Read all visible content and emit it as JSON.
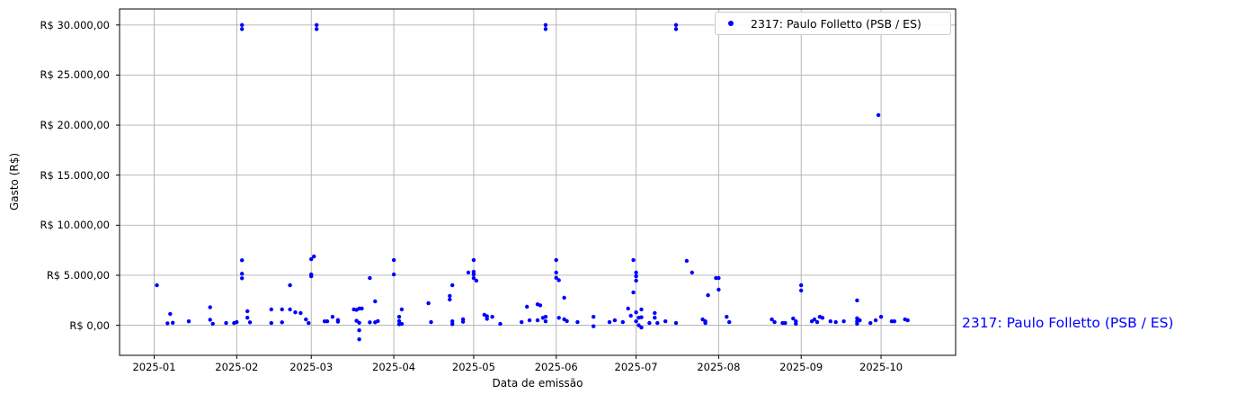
{
  "figure": {
    "background": "#ffffff"
  },
  "colors": {
    "series": "#0000ff",
    "grid": "#b0b0b0",
    "spine": "#000000",
    "legend_border": "#cccccc",
    "annotation": "#0000ff"
  },
  "annotation": {
    "text": "2317: Paulo Folletto (PSB / ES)"
  },
  "chart_data": {
    "type": "scatter",
    "title": "",
    "xlabel": "Data de emissão",
    "ylabel": "Gasto (R$)",
    "grid": true,
    "legend_position": "upper right",
    "xlim": [
      "2024-12-19",
      "2025-10-29"
    ],
    "ylim": [
      -3000,
      31600
    ],
    "x_ticks": [
      "2025-01",
      "2025-02",
      "2025-03",
      "2025-04",
      "2025-05",
      "2025-06",
      "2025-07",
      "2025-08",
      "2025-09",
      "2025-10"
    ],
    "y_ticks": [
      {
        "value": 0,
        "label": "R$ 0,00"
      },
      {
        "value": 5000,
        "label": "R$ 5.000,00"
      },
      {
        "value": 10000,
        "label": "R$ 10.000,00"
      },
      {
        "value": 15000,
        "label": "R$ 15.000,00"
      },
      {
        "value": 20000,
        "label": "R$ 20.000,00"
      },
      {
        "value": 25000,
        "label": "R$ 25.000,00"
      },
      {
        "value": 30000,
        "label": "R$ 30.000,00"
      }
    ],
    "series": [
      {
        "name": "2317: Paulo Folletto (PSB / ES)",
        "color": "#0000ff",
        "marker": "dot",
        "points": [
          [
            "2025-01-02",
            4000
          ],
          [
            "2025-01-06",
            200
          ],
          [
            "2025-01-07",
            1130
          ],
          [
            "2025-01-08",
            250
          ],
          [
            "2025-01-14",
            400
          ],
          [
            "2025-01-22",
            1800
          ],
          [
            "2025-01-22",
            550
          ],
          [
            "2025-01-23",
            150
          ],
          [
            "2025-01-28",
            230
          ],
          [
            "2025-01-31",
            230
          ],
          [
            "2025-02-01",
            320
          ],
          [
            "2025-02-03",
            30000
          ],
          [
            "2025-02-03",
            29600
          ],
          [
            "2025-02-03",
            6500
          ],
          [
            "2025-02-03",
            5150
          ],
          [
            "2025-02-03",
            4700
          ],
          [
            "2025-02-05",
            1400
          ],
          [
            "2025-02-05",
            760
          ],
          [
            "2025-02-06",
            300
          ],
          [
            "2025-02-14",
            1580
          ],
          [
            "2025-02-14",
            225
          ],
          [
            "2025-02-18",
            1580
          ],
          [
            "2025-02-18",
            300
          ],
          [
            "2025-02-21",
            1580
          ],
          [
            "2025-02-21",
            4000
          ],
          [
            "2025-02-23",
            1300
          ],
          [
            "2025-02-25",
            1220
          ],
          [
            "2025-02-27",
            585
          ],
          [
            "2025-02-28",
            225
          ],
          [
            "2025-03-01",
            6610
          ],
          [
            "2025-03-01",
            5080
          ],
          [
            "2025-03-01",
            4900
          ],
          [
            "2025-03-02",
            6880
          ],
          [
            "2025-03-03",
            30000
          ],
          [
            "2025-03-03",
            29600
          ],
          [
            "2025-03-06",
            400
          ],
          [
            "2025-03-07",
            400
          ],
          [
            "2025-03-09",
            850
          ],
          [
            "2025-03-11",
            520
          ],
          [
            "2025-03-11",
            360
          ],
          [
            "2025-03-17",
            1580
          ],
          [
            "2025-03-18",
            1540
          ],
          [
            "2025-03-18",
            450
          ],
          [
            "2025-03-19",
            1670
          ],
          [
            "2025-03-19",
            250
          ],
          [
            "2025-03-19",
            -500
          ],
          [
            "2025-03-19",
            -1400
          ],
          [
            "2025-03-20",
            1670
          ],
          [
            "2025-03-23",
            4720
          ],
          [
            "2025-03-23",
            300
          ],
          [
            "2025-03-25",
            2390
          ],
          [
            "2025-03-25",
            300
          ],
          [
            "2025-03-26",
            420
          ],
          [
            "2025-04-01",
            6520
          ],
          [
            "2025-04-01",
            5080
          ],
          [
            "2025-04-03",
            850
          ],
          [
            "2025-04-03",
            420
          ],
          [
            "2025-04-03",
            100
          ],
          [
            "2025-04-04",
            1580
          ],
          [
            "2025-04-04",
            140
          ],
          [
            "2025-04-14",
            2200
          ],
          [
            "2025-04-15",
            320
          ],
          [
            "2025-04-22",
            2930
          ],
          [
            "2025-04-22",
            2570
          ],
          [
            "2025-04-23",
            4000
          ],
          [
            "2025-04-23",
            400
          ],
          [
            "2025-04-23",
            120
          ],
          [
            "2025-04-27",
            600
          ],
          [
            "2025-04-27",
            350
          ],
          [
            "2025-04-29",
            5270
          ],
          [
            "2025-05-01",
            6520
          ],
          [
            "2025-05-01",
            5350
          ],
          [
            "2025-05-01",
            5080
          ],
          [
            "2025-05-01",
            4720
          ],
          [
            "2025-05-02",
            4460
          ],
          [
            "2025-05-05",
            1050
          ],
          [
            "2025-05-06",
            900
          ],
          [
            "2025-05-06",
            650
          ],
          [
            "2025-05-08",
            850
          ],
          [
            "2025-05-11",
            140
          ],
          [
            "2025-05-19",
            320
          ],
          [
            "2025-05-21",
            1850
          ],
          [
            "2025-05-22",
            500
          ],
          [
            "2025-05-25",
            2100
          ],
          [
            "2025-05-25",
            500
          ],
          [
            "2025-05-26",
            2000
          ],
          [
            "2025-05-27",
            750
          ],
          [
            "2025-05-28",
            30000
          ],
          [
            "2025-05-28",
            29600
          ],
          [
            "2025-05-28",
            850
          ],
          [
            "2025-05-28",
            400
          ],
          [
            "2025-06-01",
            6520
          ],
          [
            "2025-06-01",
            5270
          ],
          [
            "2025-06-01",
            4750
          ],
          [
            "2025-06-02",
            4500
          ],
          [
            "2025-06-02",
            750
          ],
          [
            "2025-06-04",
            2750
          ],
          [
            "2025-06-04",
            600
          ],
          [
            "2025-06-05",
            420
          ],
          [
            "2025-06-09",
            320
          ],
          [
            "2025-06-15",
            850
          ],
          [
            "2025-06-15",
            -100
          ],
          [
            "2025-06-21",
            320
          ],
          [
            "2025-06-23",
            500
          ],
          [
            "2025-06-26",
            320
          ],
          [
            "2025-06-28",
            1670
          ],
          [
            "2025-06-29",
            950
          ],
          [
            "2025-06-30",
            6520
          ],
          [
            "2025-06-30",
            3280
          ],
          [
            "2025-07-01",
            5270
          ],
          [
            "2025-07-01",
            4900
          ],
          [
            "2025-07-01",
            4460
          ],
          [
            "2025-07-01",
            1300
          ],
          [
            "2025-07-01",
            400
          ],
          [
            "2025-07-02",
            760
          ],
          [
            "2025-07-02",
            0
          ],
          [
            "2025-07-03",
            1580
          ],
          [
            "2025-07-03",
            800
          ],
          [
            "2025-07-03",
            -220
          ],
          [
            "2025-07-06",
            230
          ],
          [
            "2025-07-08",
            1220
          ],
          [
            "2025-07-08",
            760
          ],
          [
            "2025-07-09",
            230
          ],
          [
            "2025-07-12",
            400
          ],
          [
            "2025-07-16",
            30000
          ],
          [
            "2025-07-16",
            29600
          ],
          [
            "2025-07-16",
            230
          ],
          [
            "2025-07-20",
            6440
          ],
          [
            "2025-07-22",
            5270
          ],
          [
            "2025-07-26",
            590
          ],
          [
            "2025-07-27",
            400
          ],
          [
            "2025-07-27",
            230
          ],
          [
            "2025-07-28",
            3000
          ],
          [
            "2025-07-31",
            4720
          ],
          [
            "2025-08-01",
            4720
          ],
          [
            "2025-08-01",
            3560
          ],
          [
            "2025-08-04",
            850
          ],
          [
            "2025-08-05",
            320
          ],
          [
            "2025-08-21",
            590
          ],
          [
            "2025-08-22",
            320
          ],
          [
            "2025-08-25",
            230
          ],
          [
            "2025-08-26",
            230
          ],
          [
            "2025-08-29",
            680
          ],
          [
            "2025-08-30",
            400
          ],
          [
            "2025-08-30",
            150
          ],
          [
            "2025-09-01",
            4000
          ],
          [
            "2025-09-01",
            3470
          ],
          [
            "2025-09-05",
            400
          ],
          [
            "2025-09-06",
            590
          ],
          [
            "2025-09-07",
            320
          ],
          [
            "2025-09-08",
            850
          ],
          [
            "2025-09-09",
            750
          ],
          [
            "2025-09-12",
            400
          ],
          [
            "2025-09-14",
            320
          ],
          [
            "2025-09-17",
            400
          ],
          [
            "2025-09-22",
            2480
          ],
          [
            "2025-09-22",
            700
          ],
          [
            "2025-09-22",
            400
          ],
          [
            "2025-09-22",
            150
          ],
          [
            "2025-09-23",
            500
          ],
          [
            "2025-09-27",
            230
          ],
          [
            "2025-09-29",
            500
          ],
          [
            "2025-09-30",
            21000
          ],
          [
            "2025-10-01",
            850
          ],
          [
            "2025-10-05",
            400
          ],
          [
            "2025-10-06",
            400
          ],
          [
            "2025-10-10",
            590
          ],
          [
            "2025-10-11",
            500
          ]
        ]
      }
    ]
  }
}
